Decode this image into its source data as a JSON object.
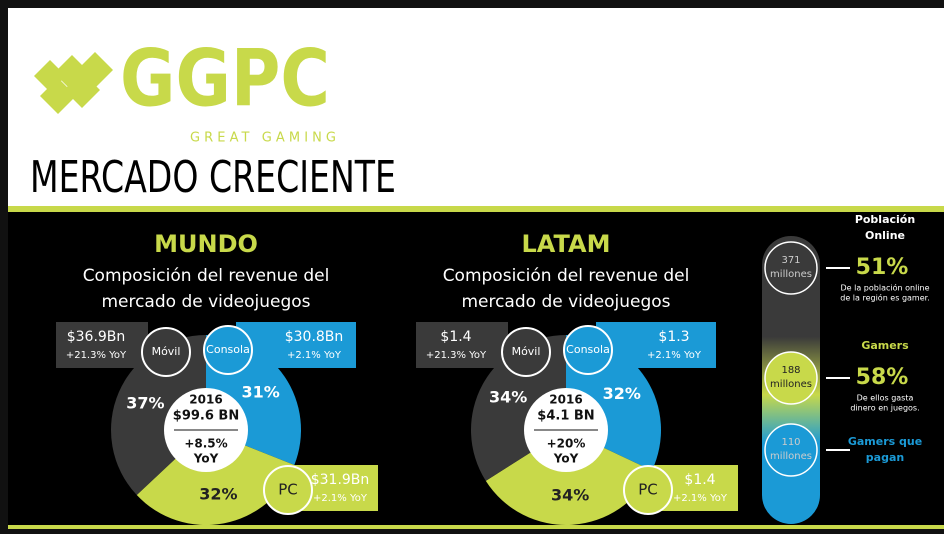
{
  "header": {
    "logo": "GGPC",
    "tagline": "GREAT GAMING",
    "title": "MERCADO CRECIENTE"
  },
  "chart_data": [
    {
      "type": "pie",
      "title": "MUNDO",
      "subtitle": [
        "Composición del revenue del",
        "mercado de videojuegos"
      ],
      "categories": [
        "Consola",
        "PC",
        "Móvil"
      ],
      "values": [
        31,
        32,
        37
      ],
      "value_labels": [
        "31%",
        "32%",
        "37%"
      ],
      "colors": [
        "#1b9ad6",
        "#c8d94a",
        "#3a3a3a"
      ],
      "amounts": [
        "$30.8Bn",
        "$31.9Bn",
        "$36.9Bn"
      ],
      "growth": [
        "+2.1% YoY",
        "+2.1% YoY",
        "+21.3% YoY"
      ],
      "center": [
        "2016",
        "$99.6 BN",
        "+8.5%",
        "YoY"
      ]
    },
    {
      "type": "pie",
      "title": "LATAM",
      "subtitle": [
        "Composición del revenue del",
        "mercado de videojuegos"
      ],
      "categories": [
        "Consola",
        "PC",
        "Móvil"
      ],
      "values": [
        32,
        34,
        34
      ],
      "value_labels": [
        "32%",
        "34%",
        "34%"
      ],
      "colors": [
        "#1b9ad6",
        "#c8d94a",
        "#3a3a3a"
      ],
      "amounts": [
        "$1.3",
        "$1.4",
        "$1.4"
      ],
      "growth": [
        "+2.1% YoY",
        "+2.1% YoY",
        "+21.3% YoY"
      ],
      "center": [
        "2016",
        "$4.1 BN",
        "+20%",
        "YoY"
      ]
    }
  ],
  "funnel": [
    {
      "count": "371",
      "unit": "millones",
      "label": [
        "Población",
        "Online"
      ],
      "pct": "51%",
      "note": [
        "De la población online",
        "de la región es gamer."
      ]
    },
    {
      "count": "188",
      "unit": "millones",
      "label": [
        "Gamers"
      ],
      "pct": "58%",
      "note": [
        "De ellos gasta",
        "dinero en juegos."
      ]
    },
    {
      "count": "110",
      "unit": "millones",
      "label": [
        "Gamers que",
        "pagan"
      ]
    }
  ]
}
